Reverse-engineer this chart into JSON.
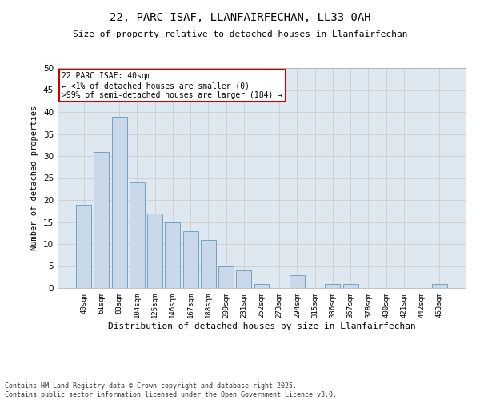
{
  "title_line1": "22, PARC ISAF, LLANFAIRFECHAN, LL33 0AH",
  "title_line2": "Size of property relative to detached houses in Llanfairfechan",
  "xlabel": "Distribution of detached houses by size in Llanfairfechan",
  "ylabel": "Number of detached properties",
  "categories": [
    "40sqm",
    "61sqm",
    "83sqm",
    "104sqm",
    "125sqm",
    "146sqm",
    "167sqm",
    "188sqm",
    "209sqm",
    "231sqm",
    "252sqm",
    "273sqm",
    "294sqm",
    "315sqm",
    "336sqm",
    "357sqm",
    "378sqm",
    "400sqm",
    "421sqm",
    "442sqm",
    "463sqm"
  ],
  "values": [
    19,
    31,
    39,
    24,
    17,
    15,
    13,
    11,
    5,
    4,
    1,
    0,
    3,
    0,
    1,
    1,
    0,
    0,
    0,
    0,
    1
  ],
  "bar_color": "#c9d9ea",
  "bar_edge_color": "#6699bb",
  "annotation_title": "22 PARC ISAF: 40sqm",
  "annotation_line1": "← <1% of detached houses are smaller (0)",
  "annotation_line2": ">99% of semi-detached houses are larger (184) →",
  "annotation_box_facecolor": "#ffffff",
  "annotation_box_edgecolor": "#cc0000",
  "grid_color": "#cccccc",
  "background_color": "#dde8f0",
  "footer_line1": "Contains HM Land Registry data © Crown copyright and database right 2025.",
  "footer_line2": "Contains public sector information licensed under the Open Government Licence v3.0.",
  "ylim": [
    0,
    50
  ],
  "yticks": [
    0,
    5,
    10,
    15,
    20,
    25,
    30,
    35,
    40,
    45,
    50
  ]
}
